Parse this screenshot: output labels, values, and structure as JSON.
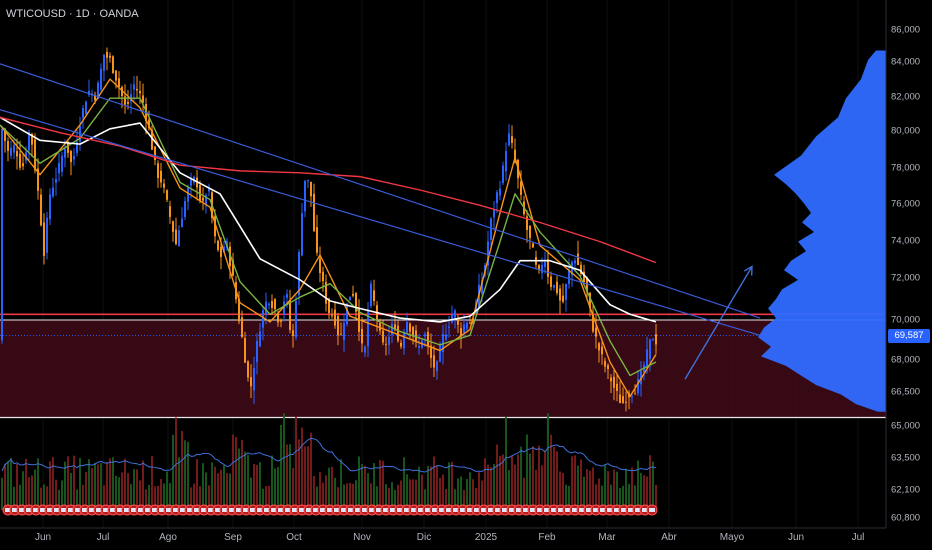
{
  "header": {
    "symbol": "WTICOUSD · 1D · OANDA"
  },
  "price_axis": {
    "ticks": [
      "86,000",
      "84,000",
      "82,000",
      "80,000",
      "78,000",
      "76,000",
      "74,000",
      "72,000",
      "70,000",
      "68,000",
      "66,500",
      "65,000",
      "63,500",
      "62,100",
      "60,800"
    ],
    "current_price": "69,587"
  },
  "time_axis": {
    "labels": [
      "Jun",
      "Jul",
      "Ago",
      "Sep",
      "Oct",
      "Nov",
      "Dic",
      "2025",
      "Feb",
      "Mar",
      "Abr",
      "Mayo",
      "Jun",
      "Jul"
    ]
  },
  "colors": {
    "up": "#2962ff",
    "down": "#f7931a",
    "ma_fast": "#f7931a",
    "ma_mid": "#7cb342",
    "ma_white": "#ffffff",
    "ma_red": "#f23645",
    "trendline": "#3a5bd9",
    "zone": "#4a0c1c",
    "profile": "#2f6bff",
    "vol_up": "#1b5e20",
    "vol_down": "#7f1d1d",
    "vol_ma": "#3f6fd8"
  },
  "chart_data": {
    "type": "candlestick",
    "symbol": "WTICOUSD",
    "timeframe": "1D",
    "ylim": [
      60800,
      86000
    ],
    "last_price": 69587,
    "horizontal_levels": [
      70700,
      70400,
      65300
    ],
    "price_path": [
      [
        0,
        80800
      ],
      [
        8,
        79200
      ],
      [
        15,
        79500
      ],
      [
        22,
        78200
      ],
      [
        30,
        80500
      ],
      [
        38,
        77100
      ],
      [
        44,
        74000
      ],
      [
        50,
        77000
      ],
      [
        58,
        78200
      ],
      [
        66,
        79700
      ],
      [
        72,
        78400
      ],
      [
        80,
        80800
      ],
      [
        88,
        82400
      ],
      [
        96,
        82100
      ],
      [
        104,
        84300
      ],
      [
        110,
        84000
      ],
      [
        118,
        82800
      ],
      [
        126,
        81400
      ],
      [
        134,
        82700
      ],
      [
        142,
        82000
      ],
      [
        150,
        80100
      ],
      [
        156,
        78200
      ],
      [
        162,
        77600
      ],
      [
        170,
        75800
      ],
      [
        176,
        74400
      ],
      [
        184,
        76400
      ],
      [
        190,
        77600
      ],
      [
        196,
        77800
      ],
      [
        202,
        76200
      ],
      [
        208,
        77500
      ],
      [
        214,
        74800
      ],
      [
        220,
        73600
      ],
      [
        226,
        74600
      ],
      [
        232,
        72900
      ],
      [
        238,
        70800
      ],
      [
        244,
        68800
      ],
      [
        250,
        66600
      ],
      [
        256,
        68800
      ],
      [
        262,
        70700
      ],
      [
        268,
        71600
      ],
      [
        274,
        71100
      ],
      [
        280,
        70200
      ],
      [
        286,
        72100
      ],
      [
        292,
        68800
      ],
      [
        298,
        73000
      ],
      [
        304,
        77800
      ],
      [
        310,
        77500
      ],
      [
        316,
        73900
      ],
      [
        322,
        72500
      ],
      [
        328,
        70900
      ],
      [
        334,
        70600
      ],
      [
        340,
        69300
      ],
      [
        346,
        71000
      ],
      [
        352,
        72100
      ],
      [
        358,
        70400
      ],
      [
        364,
        68200
      ],
      [
        370,
        72300
      ],
      [
        376,
        70800
      ],
      [
        382,
        69000
      ],
      [
        388,
        69300
      ],
      [
        394,
        70400
      ],
      [
        400,
        68800
      ],
      [
        406,
        70500
      ],
      [
        412,
        69800
      ],
      [
        418,
        68800
      ],
      [
        424,
        69800
      ],
      [
        430,
        68500
      ],
      [
        436,
        67700
      ],
      [
        442,
        69400
      ],
      [
        448,
        70100
      ],
      [
        454,
        71000
      ],
      [
        460,
        69600
      ],
      [
        466,
        70400
      ],
      [
        472,
        70200
      ],
      [
        478,
        71800
      ],
      [
        484,
        72900
      ],
      [
        490,
        75300
      ],
      [
        496,
        76800
      ],
      [
        502,
        77900
      ],
      [
        508,
        80200
      ],
      [
        514,
        79100
      ],
      [
        520,
        77000
      ],
      [
        526,
        75300
      ],
      [
        532,
        74200
      ],
      [
        538,
        72600
      ],
      [
        544,
        73800
      ],
      [
        550,
        72300
      ],
      [
        556,
        72100
      ],
      [
        562,
        71100
      ],
      [
        568,
        72700
      ],
      [
        574,
        73800
      ],
      [
        580,
        73000
      ],
      [
        586,
        72100
      ],
      [
        592,
        70200
      ],
      [
        598,
        69000
      ],
      [
        604,
        68100
      ],
      [
        610,
        67400
      ],
      [
        616,
        66600
      ],
      [
        622,
        66000
      ],
      [
        628,
        66500
      ],
      [
        634,
        66700
      ],
      [
        640,
        67300
      ],
      [
        646,
        68400
      ],
      [
        652,
        69600
      ],
      [
        656,
        69300
      ]
    ],
    "moving_averages": [
      {
        "name": "MA fast",
        "color": "#f7931a",
        "values": [
          [
            0,
            80600
          ],
          [
            40,
            78000
          ],
          [
            80,
            80600
          ],
          [
            110,
            83000
          ],
          [
            140,
            81500
          ],
          [
            180,
            77300
          ],
          [
            210,
            76300
          ],
          [
            240,
            71300
          ],
          [
            270,
            70300
          ],
          [
            300,
            72000
          ],
          [
            320,
            73800
          ],
          [
            350,
            70600
          ],
          [
            400,
            69600
          ],
          [
            440,
            68800
          ],
          [
            470,
            69900
          ],
          [
            500,
            76000
          ],
          [
            515,
            78900
          ],
          [
            540,
            74300
          ],
          [
            580,
            72500
          ],
          [
            610,
            68200
          ],
          [
            630,
            66400
          ],
          [
            656,
            68600
          ]
        ]
      },
      {
        "name": "MA mid",
        "color": "#7cb342",
        "values": [
          [
            0,
            80600
          ],
          [
            40,
            78600
          ],
          [
            80,
            79900
          ],
          [
            110,
            82000
          ],
          [
            140,
            82000
          ],
          [
            180,
            77600
          ],
          [
            210,
            76700
          ],
          [
            240,
            72400
          ],
          [
            270,
            70700
          ],
          [
            300,
            71600
          ],
          [
            330,
            72300
          ],
          [
            360,
            70800
          ],
          [
            400,
            69800
          ],
          [
            440,
            69100
          ],
          [
            470,
            69600
          ],
          [
            500,
            74500
          ],
          [
            515,
            77000
          ],
          [
            540,
            75000
          ],
          [
            580,
            72700
          ],
          [
            610,
            69300
          ],
          [
            630,
            67500
          ],
          [
            656,
            68200
          ]
        ]
      },
      {
        "name": "MA white",
        "color": "#ffffff",
        "values": [
          [
            0,
            81000
          ],
          [
            40,
            79800
          ],
          [
            80,
            79600
          ],
          [
            110,
            80400
          ],
          [
            140,
            80700
          ],
          [
            180,
            78100
          ],
          [
            220,
            77000
          ],
          [
            260,
            73600
          ],
          [
            300,
            72500
          ],
          [
            330,
            71400
          ],
          [
            360,
            71000
          ],
          [
            400,
            70500
          ],
          [
            440,
            70300
          ],
          [
            470,
            70600
          ],
          [
            500,
            72000
          ],
          [
            520,
            73500
          ],
          [
            550,
            73500
          ],
          [
            580,
            73000
          ],
          [
            610,
            71200
          ],
          [
            630,
            70700
          ],
          [
            656,
            70300
          ]
        ]
      },
      {
        "name": "MA red",
        "color": "#f23645",
        "values": [
          [
            0,
            81000
          ],
          [
            60,
            80200
          ],
          [
            120,
            79500
          ],
          [
            180,
            78500
          ],
          [
            240,
            78200
          ],
          [
            300,
            78100
          ],
          [
            360,
            77900
          ],
          [
            420,
            77200
          ],
          [
            480,
            76400
          ],
          [
            540,
            75500
          ],
          [
            600,
            74500
          ],
          [
            656,
            73400
          ]
        ]
      }
    ],
    "trendlines": [
      {
        "from": [
          0,
          83800
        ],
        "to": [
          760,
          70500
        ]
      },
      {
        "from": [
          0,
          81400
        ],
        "to": [
          760,
          69600
        ]
      }
    ],
    "projection_arrow": {
      "from": [
        685,
        67300
      ],
      "to": [
        752,
        73200
      ]
    },
    "volume_profile": [
      [
        84500,
        10
      ],
      [
        84000,
        18
      ],
      [
        83000,
        25
      ],
      [
        82000,
        40
      ],
      [
        81000,
        48
      ],
      [
        80000,
        70
      ],
      [
        79000,
        85
      ],
      [
        78000,
        112
      ],
      [
        77500,
        100
      ],
      [
        77000,
        90
      ],
      [
        76500,
        82
      ],
      [
        76000,
        75
      ],
      [
        75500,
        84
      ],
      [
        75000,
        72
      ],
      [
        74500,
        88
      ],
      [
        74000,
        80
      ],
      [
        73500,
        95
      ],
      [
        73000,
        102
      ],
      [
        72500,
        88
      ],
      [
        72000,
        104
      ],
      [
        71500,
        110
      ],
      [
        71000,
        118
      ],
      [
        70500,
        110
      ],
      [
        70000,
        122
      ],
      [
        69500,
        128
      ],
      [
        69000,
        115
      ],
      [
        68500,
        125
      ],
      [
        68000,
        100
      ],
      [
        67500,
        85
      ],
      [
        67000,
        70
      ],
      [
        66500,
        45
      ],
      [
        66000,
        30
      ],
      [
        65600,
        8
      ]
    ]
  }
}
